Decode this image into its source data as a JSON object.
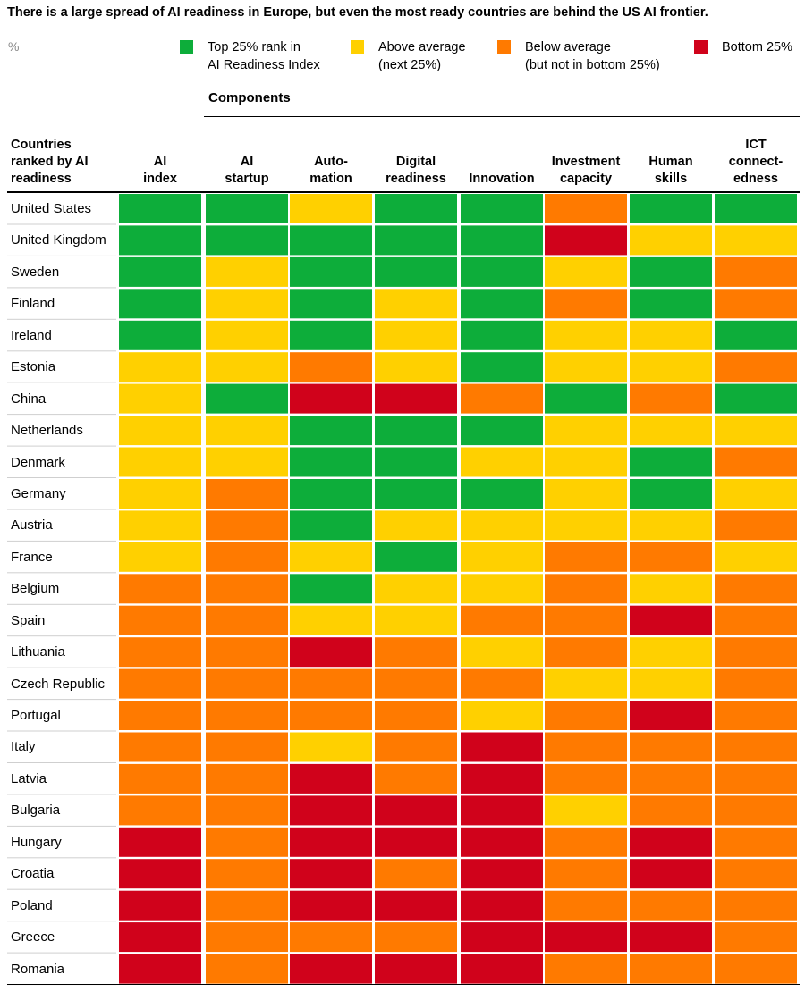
{
  "title": "There is a large spread of AI readiness in Europe, but even the most ready countries are behind the US AI frontier.",
  "unit": "%",
  "colors": {
    "green": "#0DAD3A",
    "yellow": "#FFD000",
    "orange": "#FF7A00",
    "red": "#D0021B"
  },
  "legend": [
    {
      "key": "green",
      "lines": [
        "Top 25% rank in",
        "AI Readiness Index"
      ]
    },
    {
      "key": "yellow",
      "lines": [
        "Above average",
        "(next 25%)"
      ]
    },
    {
      "key": "orange",
      "lines": [
        "Below average",
        "(but not in bottom 25%)"
      ]
    },
    {
      "key": "red",
      "lines": [
        "Bottom 25%"
      ]
    }
  ],
  "components_label": "Components",
  "row_header": [
    "Countries",
    "ranked by AI",
    "readiness"
  ],
  "chart_data": {
    "type": "heatmap",
    "columns": [
      {
        "lines": [
          "AI",
          "index"
        ]
      },
      {
        "lines": [
          "AI",
          "startup"
        ]
      },
      {
        "lines": [
          "Auto-",
          "mation"
        ]
      },
      {
        "lines": [
          "Digital",
          "readiness"
        ]
      },
      {
        "lines": [
          "Innovation"
        ]
      },
      {
        "lines": [
          "Investment",
          "capacity"
        ]
      },
      {
        "lines": [
          "Human",
          "skills"
        ]
      },
      {
        "lines": [
          "ICT",
          "connect-",
          "edness"
        ]
      }
    ],
    "rows": [
      {
        "country": "United States",
        "cells": [
          "green",
          "green",
          "yellow",
          "green",
          "green",
          "orange",
          "green",
          "green"
        ]
      },
      {
        "country": "United Kingdom",
        "cells": [
          "green",
          "green",
          "green",
          "green",
          "green",
          "red",
          "yellow",
          "yellow"
        ]
      },
      {
        "country": "Sweden",
        "cells": [
          "green",
          "yellow",
          "green",
          "green",
          "green",
          "yellow",
          "green",
          "orange"
        ]
      },
      {
        "country": "Finland",
        "cells": [
          "green",
          "yellow",
          "green",
          "yellow",
          "green",
          "orange",
          "green",
          "orange"
        ]
      },
      {
        "country": "Ireland",
        "cells": [
          "green",
          "yellow",
          "green",
          "yellow",
          "green",
          "yellow",
          "yellow",
          "green"
        ]
      },
      {
        "country": "Estonia",
        "cells": [
          "yellow",
          "yellow",
          "orange",
          "yellow",
          "green",
          "yellow",
          "yellow",
          "orange"
        ]
      },
      {
        "country": "China",
        "cells": [
          "yellow",
          "green",
          "red",
          "red",
          "orange",
          "green",
          "orange",
          "green"
        ]
      },
      {
        "country": "Netherlands",
        "cells": [
          "yellow",
          "yellow",
          "green",
          "green",
          "green",
          "yellow",
          "yellow",
          "yellow"
        ]
      },
      {
        "country": "Denmark",
        "cells": [
          "yellow",
          "yellow",
          "green",
          "green",
          "yellow",
          "yellow",
          "green",
          "orange"
        ]
      },
      {
        "country": "Germany",
        "cells": [
          "yellow",
          "orange",
          "green",
          "green",
          "green",
          "yellow",
          "green",
          "yellow"
        ]
      },
      {
        "country": "Austria",
        "cells": [
          "yellow",
          "orange",
          "green",
          "yellow",
          "yellow",
          "yellow",
          "yellow",
          "orange"
        ]
      },
      {
        "country": "France",
        "cells": [
          "yellow",
          "orange",
          "yellow",
          "green",
          "yellow",
          "orange",
          "orange",
          "yellow"
        ]
      },
      {
        "country": "Belgium",
        "cells": [
          "orange",
          "orange",
          "green",
          "yellow",
          "yellow",
          "orange",
          "yellow",
          "orange"
        ]
      },
      {
        "country": "Spain",
        "cells": [
          "orange",
          "orange",
          "yellow",
          "yellow",
          "orange",
          "orange",
          "red",
          "orange"
        ]
      },
      {
        "country": "Lithuania",
        "cells": [
          "orange",
          "orange",
          "red",
          "orange",
          "yellow",
          "orange",
          "yellow",
          "orange"
        ]
      },
      {
        "country": "Czech Republic",
        "cells": [
          "orange",
          "orange",
          "orange",
          "orange",
          "orange",
          "yellow",
          "yellow",
          "orange"
        ]
      },
      {
        "country": "Portugal",
        "cells": [
          "orange",
          "orange",
          "orange",
          "orange",
          "yellow",
          "orange",
          "red",
          "orange"
        ]
      },
      {
        "country": "Italy",
        "cells": [
          "orange",
          "orange",
          "yellow",
          "orange",
          "red",
          "orange",
          "orange",
          "orange"
        ]
      },
      {
        "country": "Latvia",
        "cells": [
          "orange",
          "orange",
          "red",
          "orange",
          "red",
          "orange",
          "orange",
          "orange"
        ]
      },
      {
        "country": "Bulgaria",
        "cells": [
          "orange",
          "orange",
          "red",
          "red",
          "red",
          "yellow",
          "orange",
          "orange"
        ]
      },
      {
        "country": "Hungary",
        "cells": [
          "red",
          "orange",
          "red",
          "red",
          "red",
          "orange",
          "red",
          "orange"
        ]
      },
      {
        "country": "Croatia",
        "cells": [
          "red",
          "orange",
          "red",
          "orange",
          "red",
          "orange",
          "red",
          "orange"
        ]
      },
      {
        "country": "Poland",
        "cells": [
          "red",
          "orange",
          "red",
          "red",
          "red",
          "orange",
          "orange",
          "orange"
        ]
      },
      {
        "country": "Greece",
        "cells": [
          "red",
          "orange",
          "orange",
          "orange",
          "red",
          "red",
          "red",
          "orange"
        ]
      },
      {
        "country": "Romania",
        "cells": [
          "red",
          "orange",
          "red",
          "red",
          "red",
          "orange",
          "orange",
          "orange"
        ]
      }
    ]
  }
}
